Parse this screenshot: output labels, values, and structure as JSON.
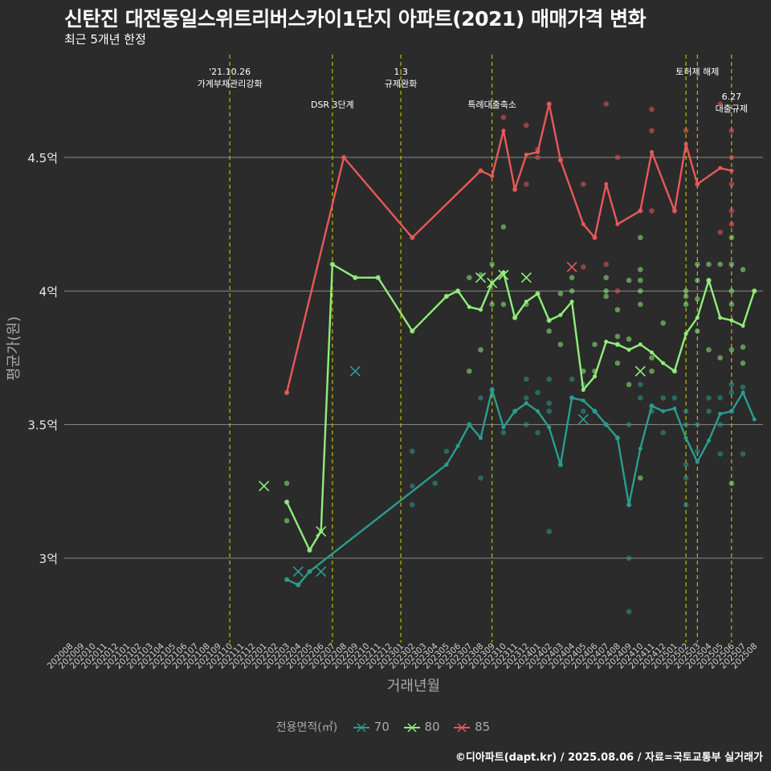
{
  "title": "신탄진 대전동일스위트리버스카이1단지 아파트(2021) 매매가격 변화",
  "subtitle": "최근 5개년 한정",
  "caption": "©디아파트(dapt.kr) / 2025.08.06 / 자료=국토교통부 실거래가",
  "legend": {
    "title": "전용면적(㎡)",
    "items": [
      "70",
      "80",
      "85"
    ]
  },
  "colors": {
    "s70": "#2a9d8f",
    "s80": "#90ee7a",
    "s85": "#e8585a",
    "event": "#d8d800",
    "grid": "#8a8a8a",
    "bg": "#2b2b2b"
  },
  "chart_data": {
    "type": "line",
    "xlabel": "거래년월",
    "ylabel": "평균가(원)",
    "x_unit": "year-month",
    "y_unit": "억원",
    "ylim": [
      2.7,
      5.0
    ],
    "yticks": [
      3.0,
      3.5,
      4.0,
      4.5
    ],
    "ytick_labels": [
      "3억",
      "3.5억",
      "4억",
      "4.5억"
    ],
    "months": [
      "202008",
      "202009",
      "202010",
      "202011",
      "202012",
      "202101",
      "202102",
      "202103",
      "202104",
      "202105",
      "202106",
      "202107",
      "202108",
      "202109",
      "202110",
      "202111",
      "202112",
      "202201",
      "202202",
      "202203",
      "202204",
      "202205",
      "202206",
      "202207",
      "202208",
      "202209",
      "202210",
      "202211",
      "202212",
      "202301",
      "202302",
      "202303",
      "202304",
      "202305",
      "202306",
      "202307",
      "202308",
      "202309",
      "202310",
      "202311",
      "202312",
      "202401",
      "202402",
      "202403",
      "202404",
      "202405",
      "202406",
      "202407",
      "202408",
      "202409",
      "202410",
      "202411",
      "202412",
      "202501",
      "202502",
      "202503",
      "202504",
      "202505",
      "202506",
      "202507",
      "202508"
    ],
    "events": [
      {
        "month": "202110",
        "label": [
          "'21.10.26",
          "가계부채관리강화"
        ],
        "tier": 1
      },
      {
        "month": "202207",
        "label": [
          "DSR 3단계"
        ],
        "tier": 2
      },
      {
        "month": "202301",
        "label": [
          "1.3",
          "규제완화"
        ],
        "tier": 1
      },
      {
        "month": "202309",
        "label": [
          "특례대출축소"
        ],
        "tier": 2
      },
      {
        "month": "202502",
        "label": [],
        "tier": 0
      },
      {
        "month": "202503",
        "label": [
          "토허제 해제"
        ],
        "tier": 1
      },
      {
        "month": "202506",
        "label": [
          "6.27",
          "대출규제"
        ],
        "tier": 3
      }
    ],
    "series": [
      {
        "name": "70",
        "color": "#2a9d8f",
        "line": [
          [
            "202203",
            2.92
          ],
          [
            "202204",
            2.9
          ],
          [
            "202205",
            2.95
          ],
          [
            "202305",
            3.35
          ],
          [
            "202306",
            3.42
          ],
          [
            "202307",
            3.5
          ],
          [
            "202308",
            3.45
          ],
          [
            "202309",
            3.63
          ],
          [
            "202310",
            3.49
          ],
          [
            "202311",
            3.55
          ],
          [
            "202312",
            3.58
          ],
          [
            "202401",
            3.55
          ],
          [
            "202402",
            3.49
          ],
          [
            "202403",
            3.35
          ],
          [
            "202404",
            3.6
          ],
          [
            "202405",
            3.59
          ],
          [
            "202406",
            3.55
          ],
          [
            "202407",
            3.5
          ],
          [
            "202408",
            3.45
          ],
          [
            "202409",
            3.2
          ],
          [
            "202410",
            3.41
          ],
          [
            "202411",
            3.57
          ],
          [
            "202412",
            3.55
          ],
          [
            "202501",
            3.56
          ],
          [
            "202502",
            3.45
          ],
          [
            "202503",
            3.36
          ],
          [
            "202504",
            3.44
          ],
          [
            "202505",
            3.54
          ],
          [
            "202506",
            3.55
          ],
          [
            "202507",
            3.62
          ],
          [
            "202508",
            3.52
          ]
        ],
        "points": [
          [
            "202203",
            2.92
          ],
          [
            "202204",
            2.9
          ],
          [
            "202205",
            2.95
          ],
          [
            "202302",
            3.4
          ],
          [
            "202302",
            3.27
          ],
          [
            "202302",
            3.2
          ],
          [
            "202304",
            3.28
          ],
          [
            "202305",
            3.4
          ],
          [
            "202307",
            3.5
          ],
          [
            "202308",
            3.6
          ],
          [
            "202308",
            3.3
          ],
          [
            "202309",
            3.63
          ],
          [
            "202310",
            3.47
          ],
          [
            "202311",
            3.55
          ],
          [
            "202312",
            3.6
          ],
          [
            "202312",
            3.5
          ],
          [
            "202312",
            3.67
          ],
          [
            "202401",
            3.62
          ],
          [
            "202401",
            3.47
          ],
          [
            "202402",
            3.55
          ],
          [
            "202402",
            3.58
          ],
          [
            "202402",
            3.67
          ],
          [
            "202402",
            3.1
          ],
          [
            "202403",
            3.35
          ],
          [
            "202404",
            3.6
          ],
          [
            "202404",
            3.67
          ],
          [
            "202405",
            3.65
          ],
          [
            "202405",
            3.55
          ],
          [
            "202406",
            3.55
          ],
          [
            "202407",
            3.5
          ],
          [
            "202408",
            3.45
          ],
          [
            "202409",
            3.2
          ],
          [
            "202409",
            3.0
          ],
          [
            "202409",
            2.8
          ],
          [
            "202409",
            3.5
          ],
          [
            "202410",
            3.6
          ],
          [
            "202410",
            3.65
          ],
          [
            "202411",
            3.57
          ],
          [
            "202411",
            3.55
          ],
          [
            "202412",
            3.6
          ],
          [
            "202412",
            3.47
          ],
          [
            "202501",
            3.6
          ],
          [
            "202502",
            3.2
          ],
          [
            "202502",
            3.3
          ],
          [
            "202502",
            3.35
          ],
          [
            "202502",
            3.5
          ],
          [
            "202502",
            3.55
          ],
          [
            "202503",
            3.4
          ],
          [
            "202503",
            3.5
          ],
          [
            "202504",
            3.55
          ],
          [
            "202504",
            3.6
          ],
          [
            "202505",
            3.39
          ],
          [
            "202505",
            3.5
          ],
          [
            "202505",
            3.6
          ],
          [
            "202506",
            3.62
          ],
          [
            "202506",
            3.55
          ],
          [
            "202506",
            3.65
          ],
          [
            "202507",
            3.64
          ],
          [
            "202507",
            3.39
          ]
        ],
        "crosses": [
          [
            "202204",
            2.95
          ],
          [
            "202206",
            2.95
          ],
          [
            "202209",
            3.7
          ],
          [
            "202405",
            3.52
          ]
        ]
      },
      {
        "name": "80",
        "color": "#90ee7a",
        "line": [
          [
            "202203",
            3.21
          ],
          [
            "202205",
            3.03
          ],
          [
            "202206",
            3.1
          ],
          [
            "202207",
            4.1
          ],
          [
            "202209",
            4.05
          ],
          [
            "202211",
            4.05
          ],
          [
            "202302",
            3.85
          ],
          [
            "202305",
            3.98
          ],
          [
            "202306",
            4.0
          ],
          [
            "202307",
            3.94
          ],
          [
            "202308",
            3.93
          ],
          [
            "202309",
            4.03
          ],
          [
            "202310",
            4.07
          ],
          [
            "202311",
            3.9
          ],
          [
            "202312",
            3.96
          ],
          [
            "202401",
            3.99
          ],
          [
            "202402",
            3.89
          ],
          [
            "202403",
            3.91
          ],
          [
            "202404",
            3.96
          ],
          [
            "202405",
            3.63
          ],
          [
            "202406",
            3.68
          ],
          [
            "202407",
            3.81
          ],
          [
            "202408",
            3.8
          ],
          [
            "202409",
            3.78
          ],
          [
            "202410",
            3.8
          ],
          [
            "202411",
            3.77
          ],
          [
            "202412",
            3.73
          ],
          [
            "202501",
            3.7
          ],
          [
            "202502",
            3.84
          ],
          [
            "202503",
            3.9
          ],
          [
            "202504",
            4.04
          ],
          [
            "202505",
            3.9
          ],
          [
            "202506",
            3.89
          ],
          [
            "202507",
            3.87
          ],
          [
            "202508",
            4.0
          ]
        ],
        "points": [
          [
            "202203",
            3.28
          ],
          [
            "202203",
            3.21
          ],
          [
            "202203",
            3.14
          ],
          [
            "202205",
            3.03
          ],
          [
            "202207",
            4.1
          ],
          [
            "202209",
            4.05
          ],
          [
            "202211",
            4.05
          ],
          [
            "202302",
            3.85
          ],
          [
            "202305",
            3.98
          ],
          [
            "202306",
            4.0
          ],
          [
            "202307",
            3.7
          ],
          [
            "202307",
            4.05
          ],
          [
            "202308",
            3.78
          ],
          [
            "202308",
            4.06
          ],
          [
            "202309",
            4.1
          ],
          [
            "202309",
            3.95
          ],
          [
            "202310",
            3.95
          ],
          [
            "202310",
            4.24
          ],
          [
            "202311",
            3.9
          ],
          [
            "202312",
            3.95
          ],
          [
            "202401",
            3.99
          ],
          [
            "202402",
            3.89
          ],
          [
            "202402",
            3.85
          ],
          [
            "202403",
            3.8
          ],
          [
            "202403",
            3.99
          ],
          [
            "202404",
            4.05
          ],
          [
            "202404",
            4.0
          ],
          [
            "202405",
            3.7
          ],
          [
            "202406",
            3.7
          ],
          [
            "202406",
            3.8
          ],
          [
            "202407",
            4.05
          ],
          [
            "202407",
            4.0
          ],
          [
            "202407",
            3.98
          ],
          [
            "202408",
            3.93
          ],
          [
            "202408",
            3.73
          ],
          [
            "202408",
            3.83
          ],
          [
            "202408",
            3.8
          ],
          [
            "202409",
            3.82
          ],
          [
            "202409",
            4.04
          ],
          [
            "202409",
            3.65
          ],
          [
            "202410",
            4.2
          ],
          [
            "202410",
            4.08
          ],
          [
            "202410",
            4.04
          ],
          [
            "202410",
            3.3
          ],
          [
            "202410",
            4.0
          ],
          [
            "202410",
            3.95
          ],
          [
            "202411",
            3.7
          ],
          [
            "202411",
            3.75
          ],
          [
            "202412",
            3.88
          ],
          [
            "202501",
            3.7
          ],
          [
            "202502",
            3.95
          ],
          [
            "202502",
            3.98
          ],
          [
            "202502",
            4.0
          ],
          [
            "202503",
            4.1
          ],
          [
            "202503",
            4.04
          ],
          [
            "202503",
            3.97
          ],
          [
            "202503",
            3.85
          ],
          [
            "202504",
            4.1
          ],
          [
            "202504",
            4.04
          ],
          [
            "202504",
            3.78
          ],
          [
            "202505",
            4.1
          ],
          [
            "202505",
            3.75
          ],
          [
            "202506",
            4.2
          ],
          [
            "202506",
            4.1
          ],
          [
            "202506",
            4.0
          ],
          [
            "202506",
            3.95
          ],
          [
            "202506",
            3.78
          ],
          [
            "202506",
            3.28
          ],
          [
            "202507",
            4.08
          ],
          [
            "202507",
            3.79
          ],
          [
            "202507",
            3.73
          ],
          [
            "202508",
            4.0
          ]
        ],
        "crosses": [
          [
            "202201",
            3.27
          ],
          [
            "202206",
            3.1
          ],
          [
            "202308",
            4.05
          ],
          [
            "202309",
            4.03
          ],
          [
            "202310",
            4.06
          ],
          [
            "202312",
            4.05
          ],
          [
            "202410",
            3.7
          ]
        ]
      },
      {
        "name": "85",
        "color": "#e8585a",
        "line": [
          [
            "202203",
            3.62
          ],
          [
            "202208",
            4.5
          ],
          [
            "202302",
            4.2
          ],
          [
            "202308",
            4.45
          ],
          [
            "202309",
            4.43
          ],
          [
            "202310",
            4.6
          ],
          [
            "202311",
            4.38
          ],
          [
            "202312",
            4.51
          ],
          [
            "202401",
            4.52
          ],
          [
            "202402",
            4.7
          ],
          [
            "202403",
            4.49
          ],
          [
            "202405",
            4.25
          ],
          [
            "202406",
            4.2
          ],
          [
            "202407",
            4.4
          ],
          [
            "202408",
            4.25
          ],
          [
            "202410",
            4.3
          ],
          [
            "202411",
            4.52
          ],
          [
            "202501",
            4.3
          ],
          [
            "202502",
            4.55
          ],
          [
            "202503",
            4.4
          ],
          [
            "202505",
            4.46
          ],
          [
            "202506",
            4.45
          ]
        ],
        "points": [
          [
            "202203",
            3.62
          ],
          [
            "202208",
            4.5
          ],
          [
            "202302",
            4.2
          ],
          [
            "202308",
            4.45
          ],
          [
            "202310",
            4.65
          ],
          [
            "202311",
            4.38
          ],
          [
            "202312",
            4.62
          ],
          [
            "202312",
            4.4
          ],
          [
            "202401",
            4.53
          ],
          [
            "202401",
            4.5
          ],
          [
            "202402",
            4.7
          ],
          [
            "202403",
            4.49
          ],
          [
            "202405",
            4.4
          ],
          [
            "202405",
            4.09
          ],
          [
            "202406",
            4.2
          ],
          [
            "202407",
            4.7
          ],
          [
            "202407",
            4.1
          ],
          [
            "202408",
            4.5
          ],
          [
            "202408",
            4.0
          ],
          [
            "202410",
            4.3
          ],
          [
            "202411",
            4.68
          ],
          [
            "202411",
            4.6
          ],
          [
            "202411",
            4.3
          ],
          [
            "202501",
            4.3
          ],
          [
            "202502",
            4.6
          ],
          [
            "202503",
            4.4
          ],
          [
            "202505",
            4.7
          ],
          [
            "202505",
            4.22
          ],
          [
            "202506",
            4.6
          ],
          [
            "202506",
            4.5
          ],
          [
            "202506",
            4.4
          ],
          [
            "202506",
            4.3
          ],
          [
            "202506",
            4.25
          ]
        ],
        "crosses": [
          [
            "202404",
            4.09
          ]
        ]
      }
    ]
  }
}
